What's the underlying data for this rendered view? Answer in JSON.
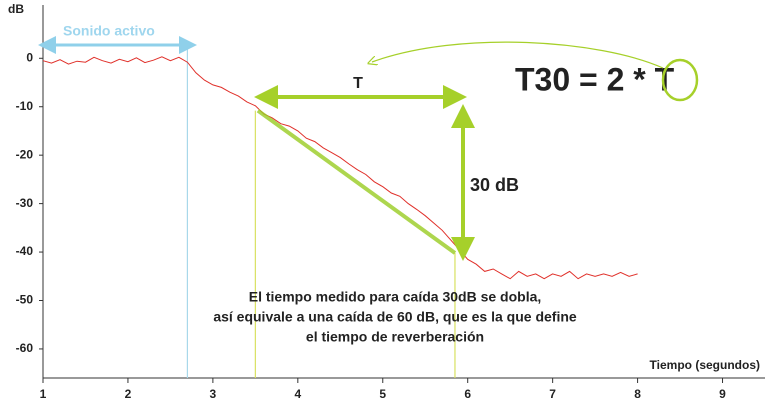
{
  "chart_data": {
    "type": "line",
    "y_label": "dB",
    "x_label": "Tiempo (segundos)",
    "x": [
      1.0,
      1.1,
      1.2,
      1.3,
      1.4,
      1.5,
      1.6,
      1.7,
      1.8,
      1.9,
      2.0,
      2.1,
      2.2,
      2.3,
      2.4,
      2.5,
      2.6,
      2.7,
      2.8,
      2.9,
      3.0,
      3.1,
      3.2,
      3.3,
      3.4,
      3.5,
      3.6,
      3.7,
      3.8,
      3.9,
      4.0,
      4.1,
      4.2,
      4.3,
      4.4,
      4.5,
      4.6,
      4.7,
      4.8,
      4.9,
      5.0,
      5.1,
      5.2,
      5.3,
      5.4,
      5.5,
      5.6,
      5.7,
      5.8,
      5.9,
      6.0,
      6.1,
      6.2,
      6.3,
      6.4,
      6.5,
      6.6,
      6.7,
      6.8,
      6.9,
      7.0,
      7.1,
      7.2,
      7.3,
      7.4,
      7.5,
      7.6,
      7.7,
      7.8,
      7.9,
      8.0
    ],
    "series": [
      {
        "color": "#e0302a",
        "values": [
          -0.5,
          -1,
          -0.3,
          -1.2,
          -0.6,
          -0.8,
          0.2,
          -0.5,
          -1.0,
          -0.2,
          -0.7,
          0.1,
          -0.9,
          -0.4,
          0.3,
          -0.5,
          0.2,
          -0.8,
          -3,
          -4.5,
          -5.5,
          -6,
          -7,
          -7.8,
          -9,
          -9.8,
          -11.5,
          -12.3,
          -13.5,
          -14,
          -15,
          -16.5,
          -17.2,
          -18.5,
          -19.5,
          -20.5,
          -21.8,
          -23,
          -24,
          -25.5,
          -26.5,
          -27.8,
          -28.5,
          -30,
          -31.2,
          -32.5,
          -34,
          -35.5,
          -37.5,
          -39.5,
          -41.5,
          -42.5,
          -44,
          -43.5,
          -44.5,
          -45.5,
          -44,
          -45,
          -44.5,
          -45.5,
          -44.5,
          -45,
          -44,
          -45.5,
          -44.5,
          -45,
          -44.5,
          -45,
          -44.2,
          -45,
          -44.5
        ]
      }
    ],
    "fit": {
      "color": "#99cc22",
      "x": [
        3.53,
        5.85
      ],
      "values": [
        -10.8,
        -40.2
      ]
    },
    "reference_lines": {
      "x": [
        2.7,
        3.5,
        5.85
      ],
      "colors": [
        "#a8d8ea",
        "#d8e060",
        "#d8e060"
      ]
    },
    "xlim": [
      1,
      9.5
    ],
    "ylim": [
      -66,
      11
    ],
    "xticks": [
      1,
      2,
      3,
      4,
      5,
      6,
      7,
      8,
      9
    ],
    "yticks": [
      0,
      -10,
      -20,
      -30,
      -40,
      -50,
      -60
    ],
    "annotations": [
      "Sonido activo",
      "T",
      "T30 = 2 * T",
      "30 dB"
    ],
    "note": [
      "El tiempo medido para caída 30dB se dobla,",
      "así equivale a una caída de 60 dB, que es la que define",
      "el tiempo de reverberación"
    ]
  }
}
